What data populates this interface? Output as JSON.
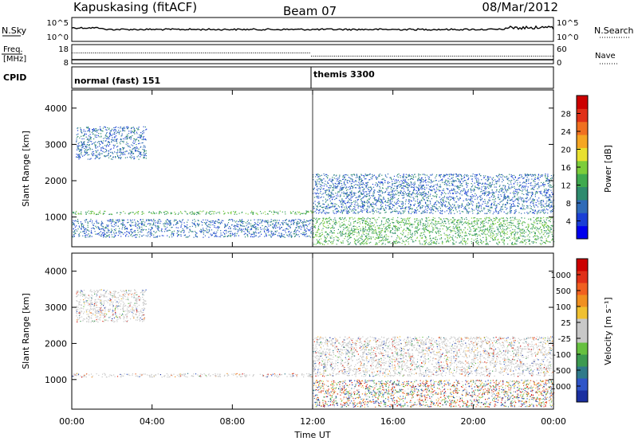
{
  "header": {
    "station": "Kapuskasing (fitACF)",
    "beam": "Beam 07",
    "date": "08/Mar/2012"
  },
  "noise_panel": {
    "left_label": "N.Sky",
    "right_label": "N.Search",
    "ticks_left": [
      "10^5",
      "10^0"
    ],
    "ticks_right": [
      "10^5",
      "10^0"
    ]
  },
  "freq_panel": {
    "left_label_1": "Freq.",
    "left_label_2": "[MHz]",
    "right_label": "Nave",
    "ticks_left": [
      "18",
      "8"
    ],
    "ticks_right": [
      "60",
      "0"
    ]
  },
  "cpid_panel": {
    "label": "CPID",
    "modes": [
      {
        "name": "normal (fast) 151",
        "start_hour": 0
      },
      {
        "name": "themis 3300",
        "start_hour": 12
      }
    ]
  },
  "axes": {
    "xlabel": "Time UT",
    "x_ticks": [
      "00:00",
      "04:00",
      "08:00",
      "12:00",
      "16:00",
      "20:00",
      "00:00"
    ],
    "ylabel": "Slant Range [km]",
    "y_ticks": [
      "4000",
      "3000",
      "2000",
      "1000"
    ]
  },
  "colorbars": {
    "power": {
      "label": "Power [dB]",
      "ticks": [
        "28",
        "24",
        "20",
        "16",
        "12",
        "8",
        "4"
      ],
      "colors": [
        "#0000ee",
        "#1a3fd6",
        "#2f6bb8",
        "#2e8b6e",
        "#3faa4f",
        "#7ccd3a",
        "#e8e030",
        "#f5a623",
        "#f07020",
        "#e03018",
        "#cc0000"
      ]
    },
    "velocity": {
      "label": "Velocity [m s⁻¹]",
      "ticks": [
        "1000",
        "500",
        "100",
        "25",
        "-25",
        "-100",
        "-500",
        "-1000"
      ],
      "colors": [
        "#1a2fa0",
        "#2f55c8",
        "#2f7a8a",
        "#3c9a50",
        "#66c040",
        "#c8c8c8",
        "#c8c8c8",
        "#f0c030",
        "#f09020",
        "#f06020",
        "#e03018",
        "#cc0000"
      ]
    }
  },
  "chart_data": [
    {
      "type": "heatmap",
      "name": "Power [dB]",
      "x_range_hours": [
        0,
        24
      ],
      "y_range_km": [
        180,
        4500
      ],
      "c_range": [
        0,
        30
      ],
      "features": [
        {
          "t0": 0.2,
          "t1": 3.7,
          "r0": 2600,
          "r1": 3500,
          "level": 5
        },
        {
          "t0": 0,
          "t1": 12,
          "r0": 1080,
          "r1": 1180,
          "level": 13
        },
        {
          "t0": 0,
          "t1": 12,
          "r0": 450,
          "r1": 950,
          "level": 7
        },
        {
          "t0": 12,
          "t1": 24,
          "r0": 250,
          "r1": 1000,
          "level": 11
        },
        {
          "t0": 12,
          "t1": 24,
          "r0": 1100,
          "r1": 2200,
          "level": 5
        }
      ]
    },
    {
      "type": "heatmap",
      "name": "Velocity [m s⁻¹]",
      "x_range_hours": [
        0,
        24
      ],
      "y_range_km": [
        180,
        4500
      ],
      "c_range": [
        -1000,
        1000
      ],
      "features": [
        {
          "t0": 0.2,
          "t1": 3.7,
          "r0": 2600,
          "r1": 3500,
          "level": 0
        },
        {
          "t0": 0,
          "t1": 12,
          "r0": 1080,
          "r1": 1180,
          "level": 0
        },
        {
          "t0": 12,
          "t1": 24,
          "r0": 250,
          "r1": 1000,
          "level": -200
        },
        {
          "t0": 12,
          "t1": 24,
          "r0": 1100,
          "r1": 2200,
          "level": 0
        }
      ]
    }
  ]
}
